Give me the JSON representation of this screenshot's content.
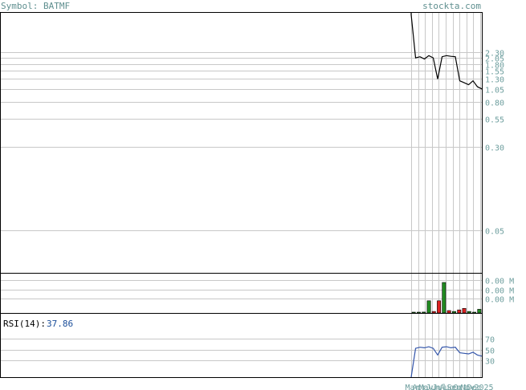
{
  "header": {
    "symbol_text": "Symbol: BATMF",
    "site_text": "stockta.com"
  },
  "rsi": {
    "label": "RSI(14):",
    "value": "37.86"
  },
  "colors": {
    "price_line": "#000000",
    "up_bar": "#228b22",
    "down_bar": "#dd2222",
    "rsi_line": "#3355aa",
    "rsi_value": "#1a4d99",
    "tick_text": "#6f9f9f",
    "grid": "#c8c8c8"
  },
  "chart_data": [
    {
      "type": "line",
      "panel": "price",
      "scale": "log",
      "ylim": [
        0.02,
        5.5
      ],
      "yticks": [
        "2.30",
        "2.05",
        "1.80",
        "1.55",
        "1.30",
        "1.05",
        "0.80",
        "0.55",
        "0.30",
        "0.05"
      ],
      "xticks": [
        "Mar",
        "Apr",
        "May",
        "Jun",
        "Jul",
        "Aug",
        "Sep",
        "Oct",
        "Nov",
        "Dec",
        "2025"
      ],
      "series": [
        {
          "values": [
            5.2,
            2.05,
            2.1,
            2.0,
            2.15,
            2.05,
            1.3,
            2.1,
            2.15,
            2.12,
            2.1,
            1.25,
            1.2,
            1.15,
            1.25,
            1.1,
            1.05
          ]
        }
      ]
    },
    {
      "type": "bar",
      "panel": "volume",
      "ylim": [
        0,
        1
      ],
      "yticks": [
        "0.00 M",
        "0.00 M",
        "0.00 M"
      ],
      "values": [
        0.02,
        0.02,
        0.03,
        0.4,
        0.05,
        0.4,
        1.0,
        0.08,
        0.05,
        0.1,
        0.15,
        0.05,
        0.02,
        0.12
      ],
      "directions": [
        "up",
        "up",
        "up",
        "up",
        "down",
        "down",
        "up",
        "down",
        "up",
        "down",
        "down",
        "up",
        "up",
        "up"
      ]
    },
    {
      "type": "line",
      "panel": "rsi",
      "ylim": [
        0,
        100
      ],
      "yticks": [
        "70",
        "50",
        "30"
      ],
      "series": [
        {
          "values": [
            0,
            52,
            54,
            53,
            55,
            52,
            40,
            54,
            55,
            53,
            54,
            44,
            43,
            42,
            45,
            40,
            38
          ]
        }
      ]
    }
  ]
}
